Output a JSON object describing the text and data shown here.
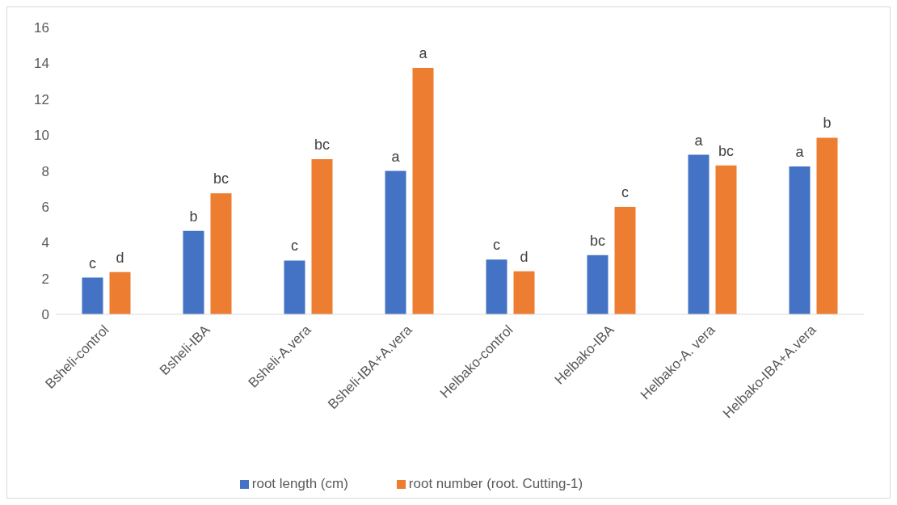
{
  "chart_data": {
    "type": "bar",
    "categories": [
      "Bsheli-control",
      "Bsheli-IBA",
      "Bsheli-A.vera",
      "Bsheli-IBA+A.vera",
      "Helbako-control",
      "Helbako-IBA",
      "Helbako-A. vera",
      "Helbako-IBA+A.vera"
    ],
    "series": [
      {
        "name": "root length (cm)",
        "color": "#4472c4",
        "values": [
          2.05,
          4.65,
          3.0,
          8.0,
          3.05,
          3.3,
          8.9,
          8.25
        ],
        "value_labels": [
          "c",
          "b",
          "c",
          "a",
          "c",
          "bc",
          "a",
          "a"
        ]
      },
      {
        "name": "root number (root. Cutting-1)",
        "color": "#ed7d31",
        "values": [
          2.35,
          6.75,
          8.65,
          13.75,
          2.4,
          6.0,
          8.3,
          9.85
        ],
        "value_labels": [
          "d",
          "bc",
          "bc",
          "a",
          "d",
          "c",
          "bc",
          "b"
        ]
      }
    ],
    "ylim": [
      0,
      16
    ],
    "yticks": [
      0,
      2,
      4,
      6,
      8,
      10,
      12,
      14,
      16
    ],
    "grid": false,
    "legend": "bottom"
  }
}
